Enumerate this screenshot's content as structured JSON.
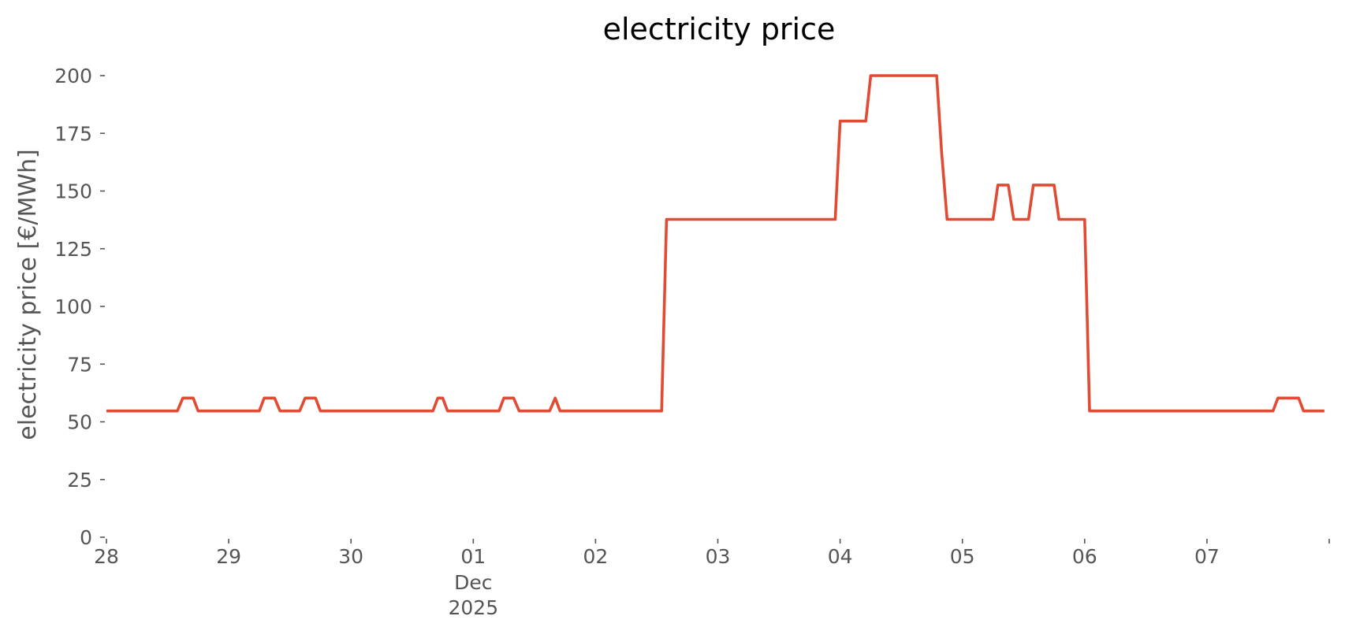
{
  "chart_data": {
    "type": "line",
    "title": "electricity price",
    "xlabel": "",
    "ylabel": "electricity price [€/MWh]",
    "ylim": [
      0,
      200
    ],
    "xlim": [
      0,
      10
    ],
    "grid": false,
    "legend": "none",
    "colors": {
      "line": "#E24A33",
      "text": "#555555"
    },
    "yticks": [
      0,
      25,
      50,
      75,
      100,
      125,
      150,
      175,
      200
    ],
    "xticks": [
      {
        "x": 0,
        "label": "28"
      },
      {
        "x": 1,
        "label": "29"
      },
      {
        "x": 2,
        "label": "30"
      },
      {
        "x": 3,
        "label": "01",
        "sub": [
          "Dec",
          "2025"
        ]
      },
      {
        "x": 4,
        "label": "02"
      },
      {
        "x": 5,
        "label": "03"
      },
      {
        "x": 6,
        "label": "04"
      },
      {
        "x": 7,
        "label": "05"
      },
      {
        "x": 8,
        "label": "06"
      },
      {
        "x": 9,
        "label": "07"
      },
      {
        "x": 10,
        "label": ""
      }
    ],
    "series": [
      {
        "points": [
          [
            0,
            54.7
          ],
          [
            0.58,
            54.7
          ],
          [
            0.625,
            60.3
          ],
          [
            0.71,
            60.3
          ],
          [
            0.75,
            54.7
          ],
          [
            1.25,
            54.7
          ],
          [
            1.29,
            60.3
          ],
          [
            1.375,
            60.3
          ],
          [
            1.42,
            54.7
          ],
          [
            1.58,
            54.7
          ],
          [
            1.625,
            60.3
          ],
          [
            1.71,
            60.3
          ],
          [
            1.75,
            54.7
          ],
          [
            2.67,
            54.7
          ],
          [
            2.71,
            60.3
          ],
          [
            2.75,
            60.3
          ],
          [
            2.79,
            54.7
          ],
          [
            3.21,
            54.7
          ],
          [
            3.25,
            60.3
          ],
          [
            3.33,
            60.3
          ],
          [
            3.375,
            54.7
          ],
          [
            3.625,
            54.7
          ],
          [
            3.67,
            60.3
          ],
          [
            3.71,
            54.7
          ],
          [
            4.54,
            54.7
          ],
          [
            4.58,
            137.7
          ],
          [
            5.96,
            137.7
          ],
          [
            6.0,
            180.3
          ],
          [
            6.21,
            180.3
          ],
          [
            6.25,
            200
          ],
          [
            6.79,
            200
          ],
          [
            6.83,
            167
          ],
          [
            6.875,
            137.7
          ],
          [
            7.25,
            137.7
          ],
          [
            7.29,
            152.6
          ],
          [
            7.375,
            152.6
          ],
          [
            7.42,
            137.7
          ],
          [
            7.54,
            137.7
          ],
          [
            7.58,
            152.6
          ],
          [
            7.75,
            152.6
          ],
          [
            7.79,
            137.7
          ],
          [
            8.0,
            137.7
          ],
          [
            8.04,
            54.7
          ],
          [
            9.54,
            54.7
          ],
          [
            9.58,
            60.3
          ],
          [
            9.75,
            60.3
          ],
          [
            9.79,
            54.7
          ],
          [
            9.96,
            54.7
          ]
        ]
      }
    ]
  }
}
